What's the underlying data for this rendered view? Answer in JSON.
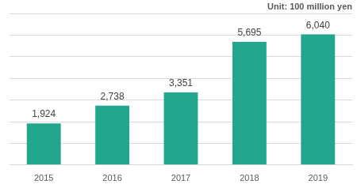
{
  "chart_data": {
    "type": "bar",
    "annotation": "Unit: 100 million yen",
    "categories": [
      "2015",
      "2016",
      "2017",
      "2018",
      "2019"
    ],
    "values": [
      1924,
      2738,
      3351,
      5695,
      6040
    ],
    "value_labels": [
      "1,924",
      "2,738",
      "3,351",
      "5,695",
      "6,040"
    ],
    "color": "#22a68e",
    "ylim": [
      0,
      7000
    ],
    "yticks": [
      0,
      1000,
      2000,
      3000,
      4000,
      5000,
      6000,
      7000
    ],
    "grid": true,
    "data_labels": true,
    "tick_labels": "x"
  }
}
